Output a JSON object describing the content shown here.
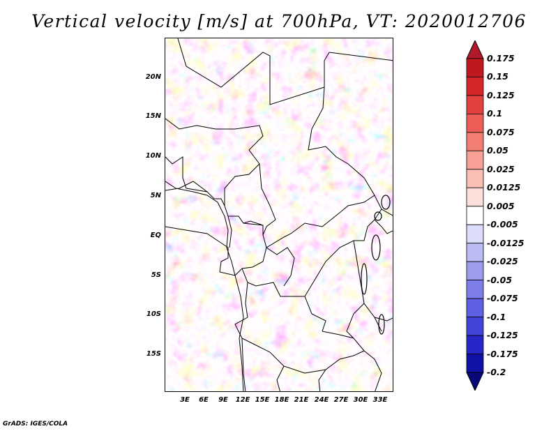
{
  "title": "Vertical velocity [m/s] at 700hPa, VT: 2020012706",
  "footer": "GrADS: IGES/COLA",
  "map": {
    "region": "Central Africa",
    "lat_labels": [
      "20N",
      "15N",
      "10N",
      "5N",
      "EQ",
      "5S",
      "10S",
      "15S"
    ],
    "lon_labels": [
      "3E",
      "6E",
      "9E",
      "12E",
      "15E",
      "18E",
      "21E",
      "24E",
      "27E",
      "30E",
      "33E"
    ],
    "field": "vertical velocity",
    "level": "700hPa",
    "valid_time": "2020012706"
  },
  "colorbar": {
    "labels": [
      "0.175",
      "0.15",
      "0.125",
      "0.1",
      "0.075",
      "0.05",
      "0.025",
      "0.0125",
      "0.005",
      "-0.005",
      "-0.0125",
      "-0.025",
      "-0.05",
      "-0.075",
      "-0.1",
      "-0.125",
      "-0.175",
      "-0.2"
    ],
    "colors": [
      "#a50f15",
      "#c0181f",
      "#d7262b",
      "#e3413f",
      "#ec5e57",
      "#f27e74",
      "#f7a096",
      "#fac0b6",
      "#fde0da",
      "#ffffff",
      "#dcdcfb",
      "#bcbcf5",
      "#9d9df0",
      "#7e7eea",
      "#6060e3",
      "#4343da",
      "#2727c8",
      "#1111a6",
      "#08087a"
    ],
    "arrow_top_color": "#b2182b",
    "arrow_bottom_color": "#08087a"
  }
}
